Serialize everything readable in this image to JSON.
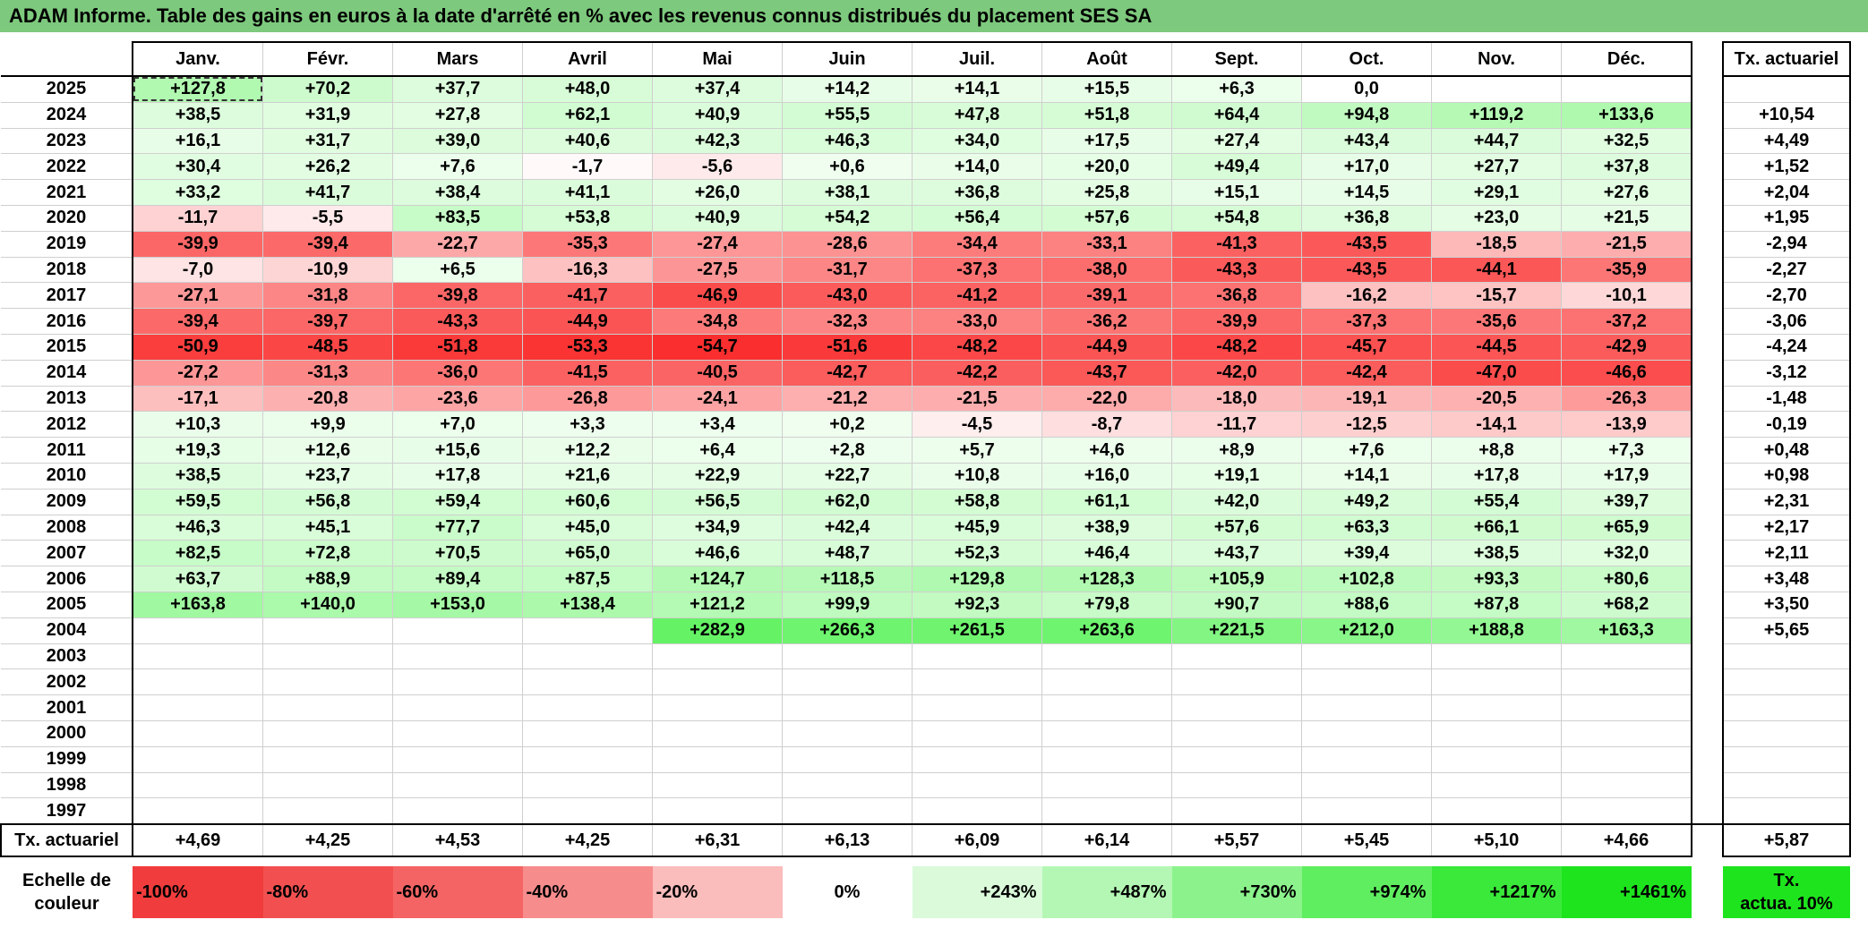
{
  "title": "ADAM Informe. Table des gains en euros à la date d'arrêté en % avec les revenus connus distribués du placement SES SA",
  "header": {
    "months": [
      "Janv.",
      "Févr.",
      "Mars",
      "Avril",
      "Mai",
      "Juin",
      "Juil.",
      "Août",
      "Sept.",
      "Oct.",
      "Nov.",
      "Déc."
    ],
    "tx_label": "Tx. actuariel"
  },
  "rows": [
    {
      "year": "2025",
      "values": [
        "+127,8",
        "+70,2",
        "+37,7",
        "+48,0",
        "+37,4",
        "+14,2",
        "+14,1",
        "+15,5",
        "+6,3",
        "0,0",
        "",
        ""
      ],
      "tx": ""
    },
    {
      "year": "2024",
      "values": [
        "+38,5",
        "+31,9",
        "+27,8",
        "+62,1",
        "+40,9",
        "+55,5",
        "+47,8",
        "+51,8",
        "+64,4",
        "+94,8",
        "+119,2",
        "+133,6"
      ],
      "tx": "+10,54"
    },
    {
      "year": "2023",
      "values": [
        "+16,1",
        "+31,7",
        "+39,0",
        "+40,6",
        "+42,3",
        "+46,3",
        "+34,0",
        "+17,5",
        "+27,4",
        "+43,4",
        "+44,7",
        "+32,5"
      ],
      "tx": "+4,49"
    },
    {
      "year": "2022",
      "values": [
        "+30,4",
        "+26,2",
        "+7,6",
        "-1,7",
        "-5,6",
        "+0,6",
        "+14,0",
        "+20,0",
        "+49,4",
        "+17,0",
        "+27,7",
        "+37,8"
      ],
      "tx": "+1,52"
    },
    {
      "year": "2021",
      "values": [
        "+33,2",
        "+41,7",
        "+38,4",
        "+41,1",
        "+26,0",
        "+38,1",
        "+36,8",
        "+25,8",
        "+15,1",
        "+14,5",
        "+29,1",
        "+27,6"
      ],
      "tx": "+2,04"
    },
    {
      "year": "2020",
      "values": [
        "-11,7",
        "-5,5",
        "+83,5",
        "+53,8",
        "+40,9",
        "+54,2",
        "+56,4",
        "+57,6",
        "+54,8",
        "+36,8",
        "+23,0",
        "+21,5"
      ],
      "tx": "+1,95"
    },
    {
      "year": "2019",
      "values": [
        "-39,9",
        "-39,4",
        "-22,7",
        "-35,3",
        "-27,4",
        "-28,6",
        "-34,4",
        "-33,1",
        "-41,3",
        "-43,5",
        "-18,5",
        "-21,5"
      ],
      "tx": "-2,94"
    },
    {
      "year": "2018",
      "values": [
        "-7,0",
        "-10,9",
        "+6,5",
        "-16,3",
        "-27,5",
        "-31,7",
        "-37,3",
        "-38,0",
        "-43,3",
        "-43,5",
        "-44,1",
        "-35,9"
      ],
      "tx": "-2,27"
    },
    {
      "year": "2017",
      "values": [
        "-27,1",
        "-31,8",
        "-39,8",
        "-41,7",
        "-46,9",
        "-43,0",
        "-41,2",
        "-39,1",
        "-36,8",
        "-16,2",
        "-15,7",
        "-10,1"
      ],
      "tx": "-2,70"
    },
    {
      "year": "2016",
      "values": [
        "-39,4",
        "-39,7",
        "-43,3",
        "-44,9",
        "-34,8",
        "-32,3",
        "-33,0",
        "-36,2",
        "-39,9",
        "-37,3",
        "-35,6",
        "-37,2"
      ],
      "tx": "-3,06"
    },
    {
      "year": "2015",
      "values": [
        "-50,9",
        "-48,5",
        "-51,8",
        "-53,3",
        "-54,7",
        "-51,6",
        "-48,2",
        "-44,9",
        "-48,2",
        "-45,7",
        "-44,5",
        "-42,9"
      ],
      "tx": "-4,24"
    },
    {
      "year": "2014",
      "values": [
        "-27,2",
        "-31,3",
        "-36,0",
        "-41,5",
        "-40,5",
        "-42,7",
        "-42,2",
        "-43,7",
        "-42,0",
        "-42,4",
        "-47,0",
        "-46,6"
      ],
      "tx": "-3,12"
    },
    {
      "year": "2013",
      "values": [
        "-17,1",
        "-20,8",
        "-23,6",
        "-26,8",
        "-24,1",
        "-21,2",
        "-21,5",
        "-22,0",
        "-18,0",
        "-19,1",
        "-20,5",
        "-26,3"
      ],
      "tx": "-1,48"
    },
    {
      "year": "2012",
      "values": [
        "+10,3",
        "+9,9",
        "+7,0",
        "+3,3",
        "+3,4",
        "+0,2",
        "-4,5",
        "-8,7",
        "-11,7",
        "-12,5",
        "-14,1",
        "-13,9"
      ],
      "tx": "-0,19"
    },
    {
      "year": "2011",
      "values": [
        "+19,3",
        "+12,6",
        "+15,6",
        "+12,2",
        "+6,4",
        "+2,8",
        "+5,7",
        "+4,6",
        "+8,9",
        "+7,6",
        "+8,8",
        "+7,3"
      ],
      "tx": "+0,48"
    },
    {
      "year": "2010",
      "values": [
        "+38,5",
        "+23,7",
        "+17,8",
        "+21,6",
        "+22,9",
        "+22,7",
        "+10,8",
        "+16,0",
        "+19,1",
        "+14,1",
        "+17,8",
        "+17,9"
      ],
      "tx": "+0,98"
    },
    {
      "year": "2009",
      "values": [
        "+59,5",
        "+56,8",
        "+59,4",
        "+60,6",
        "+56,5",
        "+62,0",
        "+58,8",
        "+61,1",
        "+42,0",
        "+49,2",
        "+55,4",
        "+39,7"
      ],
      "tx": "+2,31"
    },
    {
      "year": "2008",
      "values": [
        "+46,3",
        "+45,1",
        "+77,7",
        "+45,0",
        "+34,9",
        "+42,4",
        "+45,9",
        "+38,9",
        "+57,6",
        "+63,3",
        "+66,1",
        "+65,9"
      ],
      "tx": "+2,17"
    },
    {
      "year": "2007",
      "values": [
        "+82,5",
        "+72,8",
        "+70,5",
        "+65,0",
        "+46,6",
        "+48,7",
        "+52,3",
        "+46,4",
        "+43,7",
        "+39,4",
        "+38,5",
        "+32,0"
      ],
      "tx": "+2,11"
    },
    {
      "year": "2006",
      "values": [
        "+63,7",
        "+88,9",
        "+89,4",
        "+87,5",
        "+124,7",
        "+118,5",
        "+129,8",
        "+128,3",
        "+105,9",
        "+102,8",
        "+93,3",
        "+80,6"
      ],
      "tx": "+3,48"
    },
    {
      "year": "2005",
      "values": [
        "+163,8",
        "+140,0",
        "+153,0",
        "+138,4",
        "+121,2",
        "+99,9",
        "+92,3",
        "+79,8",
        "+90,7",
        "+88,6",
        "+87,8",
        "+68,2"
      ],
      "tx": "+3,50"
    },
    {
      "year": "2004",
      "values": [
        "",
        "",
        "",
        "",
        "+282,9",
        "+266,3",
        "+261,5",
        "+263,6",
        "+221,5",
        "+212,0",
        "+188,8",
        "+163,3"
      ],
      "tx": "+5,65"
    },
    {
      "year": "2003",
      "values": [
        "",
        "",
        "",
        "",
        "",
        "",
        "",
        "",
        "",
        "",
        "",
        ""
      ],
      "tx": ""
    },
    {
      "year": "2002",
      "values": [
        "",
        "",
        "",
        "",
        "",
        "",
        "",
        "",
        "",
        "",
        "",
        ""
      ],
      "tx": ""
    },
    {
      "year": "2001",
      "values": [
        "",
        "",
        "",
        "",
        "",
        "",
        "",
        "",
        "",
        "",
        "",
        ""
      ],
      "tx": ""
    },
    {
      "year": "2000",
      "values": [
        "",
        "",
        "",
        "",
        "",
        "",
        "",
        "",
        "",
        "",
        "",
        ""
      ],
      "tx": ""
    },
    {
      "year": "1999",
      "values": [
        "",
        "",
        "",
        "",
        "",
        "",
        "",
        "",
        "",
        "",
        "",
        ""
      ],
      "tx": ""
    },
    {
      "year": "1998",
      "values": [
        "",
        "",
        "",
        "",
        "",
        "",
        "",
        "",
        "",
        "",
        "",
        ""
      ],
      "tx": ""
    },
    {
      "year": "1997",
      "values": [
        "",
        "",
        "",
        "",
        "",
        "",
        "",
        "",
        "",
        "",
        "",
        ""
      ],
      "tx": ""
    }
  ],
  "footer": {
    "label": "Tx. actuariel",
    "values": [
      "+4,69",
      "+4,25",
      "+4,53",
      "+4,25",
      "+6,31",
      "+6,13",
      "+6,09",
      "+6,14",
      "+5,57",
      "+5,45",
      "+5,10",
      "+4,66"
    ],
    "tx": "+5,87"
  },
  "scale": {
    "label_line1": "Echelle de",
    "label_line2": "couleur",
    "items": [
      {
        "label": "-100%",
        "color": "#f03c3c"
      },
      {
        "label": "-80%",
        "color": "#f25050"
      },
      {
        "label": "-60%",
        "color": "#f46464"
      },
      {
        "label": "-40%",
        "color": "#f78c8c"
      },
      {
        "label": "-20%",
        "color": "#fbbcbc"
      },
      {
        "label": "0%",
        "color": "#ffffff"
      },
      {
        "label": "+243%",
        "color": "#dafada"
      },
      {
        "label": "+487%",
        "color": "#b4f7b4"
      },
      {
        "label": "+730%",
        "color": "#8cf38c"
      },
      {
        "label": "+974%",
        "color": "#5fee5f"
      },
      {
        "label": "+1217%",
        "color": "#3ae93a"
      },
      {
        "label": "+1461%",
        "color": "#1ee41e"
      }
    ],
    "tx_line1": "Tx.",
    "tx_line2": "actua. 10%",
    "tx_color": "#1ee41e"
  },
  "colors": {
    "title_bar": "#7dc97d",
    "negative_max": "#fa2d2d",
    "positive_max": "#1ee41e"
  }
}
